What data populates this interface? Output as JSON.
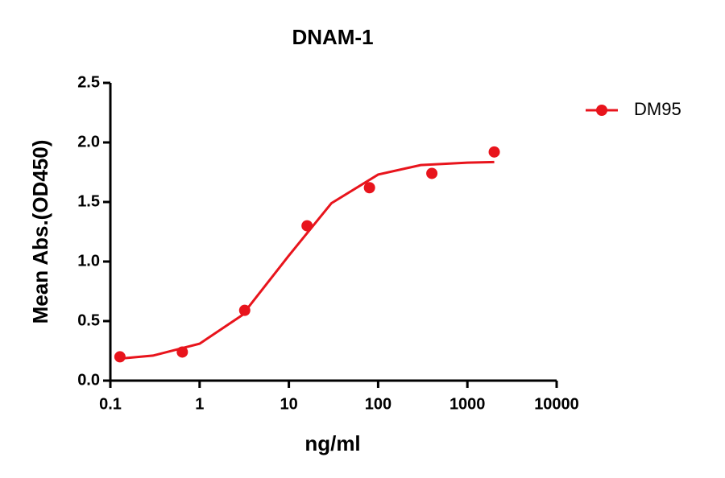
{
  "chart_data": {
    "type": "scatter",
    "title": "DNAM-1",
    "x_label": "ng/ml",
    "y_label": "Mean Abs.(OD450)",
    "x_scale": "log",
    "xlim": [
      0.1,
      10000
    ],
    "xticks": [
      0.1,
      1,
      10,
      100,
      1000,
      10000
    ],
    "ylim": [
      0,
      2.5
    ],
    "yticks": [
      {
        "value": 0,
        "label": "0.0"
      },
      0.5,
      {
        "value": 1,
        "label": "1.0"
      },
      1.5,
      {
        "value": 2,
        "label": "2.0"
      },
      2.5
    ],
    "legend": "top-right",
    "series": [
      {
        "name": "DM95",
        "color": "#e8141c",
        "x": [
          0.128,
          0.64,
          3.2,
          16,
          80,
          400,
          2000
        ],
        "values": [
          0.2,
          0.24,
          0.59,
          1.3,
          1.62,
          1.74,
          1.92
        ],
        "fit": {
          "x": [
            0.128,
            0.3,
            1,
            3,
            10,
            30,
            100,
            300,
            1000,
            2000
          ],
          "values": [
            0.185,
            0.21,
            0.31,
            0.55,
            1.05,
            1.49,
            1.73,
            1.81,
            1.83,
            1.835
          ]
        }
      }
    ]
  }
}
